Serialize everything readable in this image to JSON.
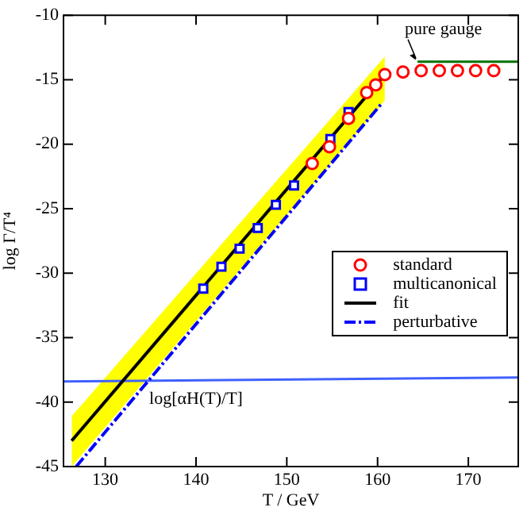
{
  "chart_data": {
    "type": "scatter",
    "xlabel": "T / GeV",
    "ylabel": "log Γ/T⁴",
    "xlim": [
      125.4,
      175.5
    ],
    "xticks": [
      130,
      140,
      150,
      160,
      170
    ],
    "ylim": [
      -45,
      -10
    ],
    "yticks": [
      -45,
      -40,
      -35,
      -30,
      -25,
      -20,
      -15,
      -10
    ],
    "grid": false,
    "legend": "right",
    "series": [
      {
        "name": "standard",
        "color": "#ff0000",
        "marker": "circle",
        "x": [
          152.8,
          154.7,
          156.8,
          158.8,
          159.8,
          160.8,
          162.8,
          164.8,
          166.8,
          168.8,
          170.8,
          172.8
        ],
        "values": [
          -21.5,
          -20.2,
          -18.0,
          -16.0,
          -15.4,
          -14.6,
          -14.4,
          -14.3,
          -14.3,
          -14.3,
          -14.3,
          -14.3
        ]
      },
      {
        "name": "multicanonical",
        "color": "#0000ff",
        "marker": "square",
        "x": [
          140.8,
          142.8,
          144.8,
          146.8,
          148.8,
          150.8,
          154.8,
          156.8
        ],
        "values": [
          -31.2,
          -29.5,
          -28.1,
          -26.5,
          -24.7,
          -23.2,
          -19.6,
          -17.5
        ]
      },
      {
        "type": "line",
        "name": "fit",
        "color": "#000000",
        "x": [
          126.3,
          160.8
        ],
        "values": [
          -43.0,
          -14.6
        ],
        "lower": [
          -45.0,
          -16.6
        ],
        "upper": [
          -41.1,
          -13.2
        ]
      },
      {
        "type": "line",
        "name": "perturbative",
        "color": "#0000ff",
        "line_style": "dashed",
        "x": [
          126.8,
          160.5
        ],
        "values": [
          -45.0,
          -16.8
        ]
      },
      {
        "type": "line",
        "color": "#4060ff",
        "x": [
          125.4,
          175.5
        ],
        "values": [
          -38.4,
          -38.1
        ]
      },
      {
        "type": "line",
        "color": "#007000",
        "x": [
          164.4,
          175.5
        ],
        "values": [
          -13.6,
          -13.6
        ]
      }
    ],
    "annotations": [
      {
        "text": "log[αH(T)/T]",
        "x": 140,
        "y": -38.3
      },
      {
        "text": "pure gauge",
        "x": 164.4,
        "y": -13.6
      }
    ]
  }
}
